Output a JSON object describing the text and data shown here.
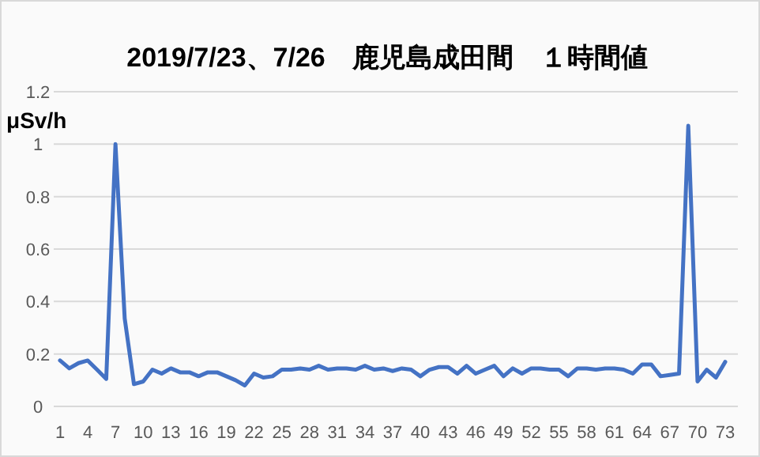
{
  "chart_data": {
    "type": "line",
    "title": "2019/7/23、7/26　鹿児島成田間　１時間値",
    "ylabel": "μSv/h",
    "categories": [
      "1",
      null,
      null,
      "4",
      null,
      null,
      "7",
      null,
      null,
      "10",
      null,
      null,
      "13",
      null,
      null,
      "16",
      null,
      null,
      "19",
      null,
      null,
      "22",
      null,
      null,
      "25",
      null,
      null,
      "28",
      null,
      null,
      "31",
      null,
      null,
      "34",
      null,
      null,
      "37",
      null,
      null,
      "40",
      null,
      null,
      "43",
      null,
      null,
      "46",
      null,
      null,
      "49",
      null,
      null,
      "52",
      null,
      null,
      "55",
      null,
      null,
      "58",
      null,
      null,
      "61",
      null,
      null,
      "64",
      null,
      null,
      "67",
      null,
      null,
      "70",
      null,
      null,
      "73"
    ],
    "series": [
      {
        "color": "#4472c4",
        "values": [
          0.175,
          0.145,
          0.165,
          0.175,
          0.14,
          0.105,
          1.0,
          0.335,
          0.085,
          0.095,
          0.14,
          0.125,
          0.145,
          0.13,
          0.13,
          0.115,
          0.13,
          0.13,
          0.115,
          0.1,
          0.08,
          0.125,
          0.11,
          0.115,
          0.14,
          0.14,
          0.145,
          0.14,
          0.155,
          0.14,
          0.145,
          0.145,
          0.14,
          0.155,
          0.14,
          0.145,
          0.135,
          0.145,
          0.14,
          0.115,
          0.14,
          0.15,
          0.15,
          0.125,
          0.155,
          0.125,
          0.14,
          0.155,
          0.115,
          0.145,
          0.125,
          0.145,
          0.145,
          0.14,
          0.14,
          0.115,
          0.145,
          0.145,
          0.14,
          0.145,
          0.145,
          0.14,
          0.125,
          0.16,
          0.16,
          0.115,
          0.12,
          0.125,
          1.07,
          0.095,
          0.14,
          0.11,
          0.17
        ]
      }
    ],
    "ylim": [
      0,
      1.2
    ],
    "yticks": [
      0,
      0.2,
      0.4,
      0.6,
      0.8,
      1,
      1.2
    ],
    "grid": "y",
    "line_style": "solid",
    "marker": "none"
  }
}
